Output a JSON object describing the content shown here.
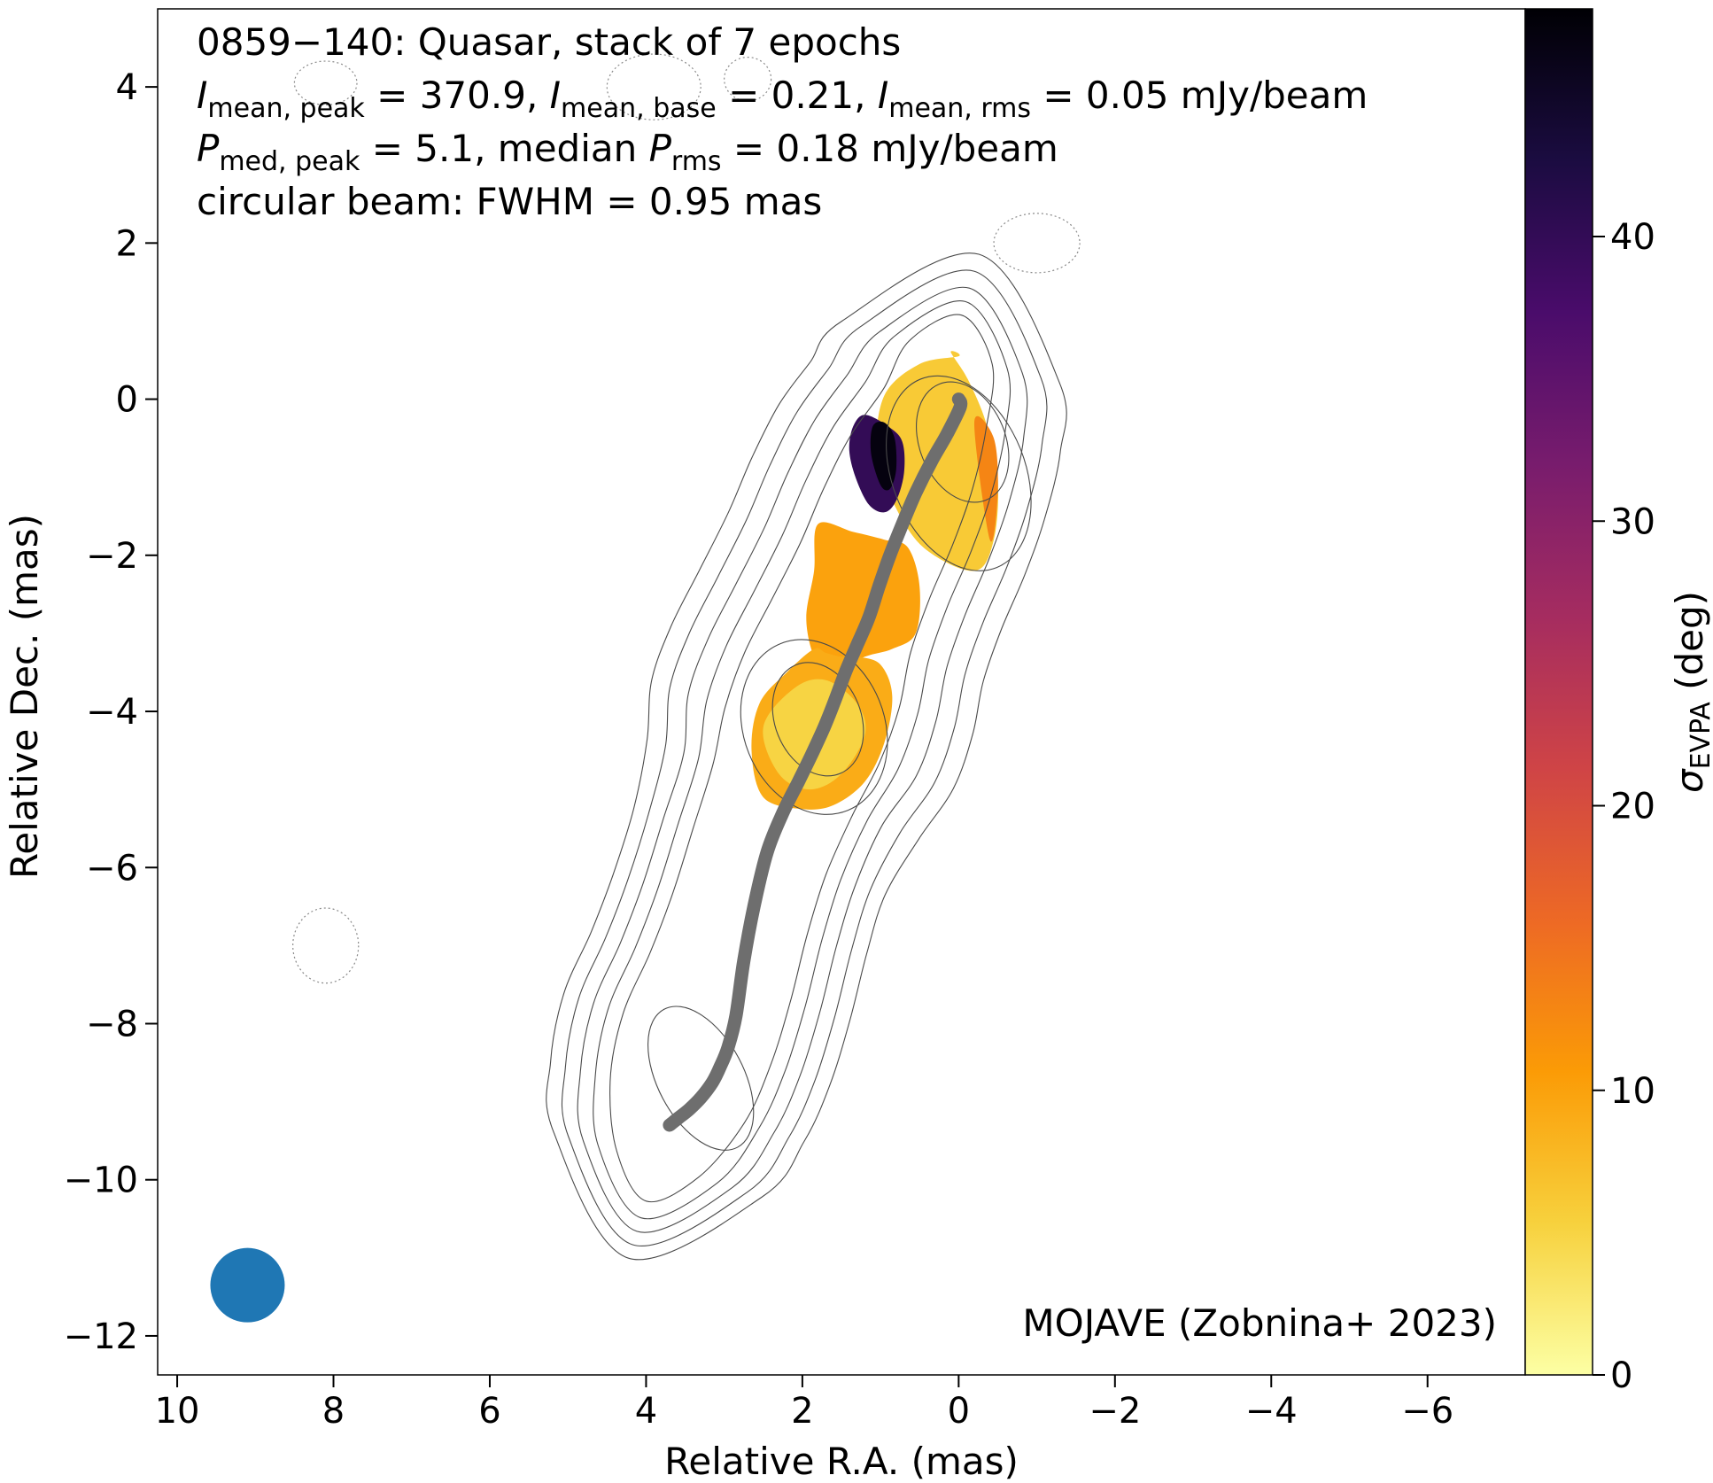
{
  "chart_data": {
    "type": "heatmap",
    "title_lines": [
      {
        "parts": [
          {
            "t": "0859−140: Quasar, stack of 7 epochs"
          }
        ]
      },
      {
        "parts": [
          {
            "t": "I",
            "i": true
          },
          {
            "t": "mean, peak",
            "sub": true
          },
          {
            "t": " = 370.9, "
          },
          {
            "t": "I",
            "i": true
          },
          {
            "t": "mean, base",
            "sub": true
          },
          {
            "t": " = 0.21, "
          },
          {
            "t": "I",
            "i": true
          },
          {
            "t": "mean, rms",
            "sub": true
          },
          {
            "t": " = 0.05 mJy/beam"
          }
        ]
      },
      {
        "parts": [
          {
            "t": "P",
            "i": true
          },
          {
            "t": "med, peak",
            "sub": true
          },
          {
            "t": " = 5.1, median "
          },
          {
            "t": "P",
            "i": true
          },
          {
            "t": "rms",
            "sub": true
          },
          {
            "t": " = 0.18 mJy/beam"
          }
        ]
      },
      {
        "parts": [
          {
            "t": "circular beam: FWHM = 0.95 mas"
          }
        ]
      }
    ],
    "xlabel": "Relative R.A. (mas)",
    "ylabel": "Relative Dec. (mas)",
    "xlim": [
      10.25,
      -7.25
    ],
    "ylim": [
      -12.5,
      5.0
    ],
    "xticks": [
      10,
      8,
      6,
      4,
      2,
      0,
      -2,
      -4,
      -6
    ],
    "xtick_labels": [
      "10",
      "8",
      "6",
      "4",
      "2",
      "0",
      "−2",
      "−4",
      "−6"
    ],
    "yticks": [
      4,
      2,
      0,
      -2,
      -4,
      -6,
      -8,
      -10,
      -12
    ],
    "ytick_labels": [
      "4",
      "2",
      "0",
      "−2",
      "−4",
      "−6",
      "−8",
      "−10",
      "−12"
    ],
    "colorbar": {
      "label_main": "σ",
      "label_sub": "EVPA",
      "label_rest": " (deg)",
      "range": [
        0,
        48
      ],
      "ticks": [
        0,
        10,
        20,
        30,
        40
      ],
      "tick_labels": [
        "0",
        "10",
        "20",
        "30",
        "40"
      ],
      "colormap": "inferno_r",
      "colors": [
        "#fcffa4",
        "#f7d13d",
        "#fb9b06",
        "#ed6925",
        "#cf4446",
        "#a52c60",
        "#781c6d",
        "#4a0c6b",
        "#1b0c41",
        "#000004"
      ]
    },
    "ridge_line": {
      "color": "#6e6e6e",
      "x": [
        0.0,
        -0.02,
        0.15,
        0.35,
        0.55,
        0.72,
        0.88,
        1.02,
        1.15,
        1.3,
        1.45,
        1.58,
        1.72,
        1.88,
        2.05,
        2.25,
        2.45,
        2.62,
        2.75,
        2.85,
        2.95,
        3.05,
        3.15,
        3.3,
        3.45,
        3.6,
        3.7
      ],
      "y": [
        0.0,
        -0.1,
        -0.45,
        -0.8,
        -1.2,
        -1.6,
        -2.0,
        -2.4,
        -2.8,
        -3.15,
        -3.5,
        -3.85,
        -4.2,
        -4.55,
        -4.9,
        -5.3,
        -5.8,
        -6.5,
        -7.2,
        -7.9,
        -8.3,
        -8.55,
        -8.75,
        -8.95,
        -9.1,
        -9.22,
        -9.3
      ]
    },
    "beam": {
      "x": 9.1,
      "y": -11.35,
      "fwhm": 0.95,
      "color": "#1f77b4"
    },
    "polarization_regions": [
      {
        "name": "core",
        "x": [
          0.0,
          0.5,
          0.95,
          1.05,
          0.85,
          0.45,
          -0.2,
          -0.45,
          -0.5,
          -0.35,
          -0.12,
          0.1
        ],
        "y": [
          0.55,
          0.45,
          0.05,
          -0.7,
          -1.3,
          -1.9,
          -2.2,
          -1.8,
          -1.0,
          -0.3,
          0.25,
          0.6
        ],
        "value": 6
      },
      {
        "name": "core-edge",
        "x": [
          -0.2,
          -0.45,
          -0.5,
          -0.4
        ],
        "y": [
          -0.3,
          -0.5,
          -1.2,
          -1.8
        ],
        "value": 13
      },
      {
        "name": "mid-jet",
        "x": [
          1.8,
          1.85,
          1.95,
          1.85,
          1.65,
          1.2,
          0.85,
          0.55,
          0.5,
          0.65,
          0.95,
          1.35
        ],
        "y": [
          -1.6,
          -2.2,
          -2.8,
          -3.3,
          -3.5,
          -3.3,
          -3.2,
          -3.0,
          -2.4,
          -1.9,
          -1.8,
          -1.7
        ],
        "value": 10
      },
      {
        "name": "lower-jet",
        "x": [
          1.85,
          2.2,
          2.55,
          2.65,
          2.5,
          2.0,
          1.6,
          1.2,
          0.95,
          0.85,
          1.0,
          1.3,
          1.5,
          1.7
        ],
        "y": [
          -3.2,
          -3.5,
          -3.9,
          -4.5,
          -5.1,
          -5.25,
          -5.2,
          -4.9,
          -4.4,
          -3.8,
          -3.4,
          -3.3,
          -3.3,
          -3.25
        ],
        "value": 9
      },
      {
        "name": "lower-jet-core",
        "x": [
          2.1,
          1.7,
          1.3,
          1.2,
          1.5,
          1.9,
          2.3,
          2.5
        ],
        "y": [
          -3.7,
          -3.6,
          -3.9,
          -4.3,
          -4.8,
          -5.0,
          -4.8,
          -4.2
        ],
        "value": 5
      }
    ],
    "evpa_hotspot": {
      "x": [
        1.35,
        1.2,
        0.9,
        0.72,
        0.7,
        0.8,
        0.95,
        1.15,
        1.32,
        1.4
      ],
      "y": [
        -0.35,
        -0.2,
        -0.35,
        -0.55,
        -0.95,
        -1.3,
        -1.45,
        -1.35,
        -1.0,
        -0.65
      ],
      "inner_x": [
        1.1,
        0.95,
        0.82,
        0.8,
        0.88,
        1.0,
        1.12
      ],
      "inner_y": [
        -0.35,
        -0.3,
        -0.5,
        -0.9,
        -1.15,
        -1.1,
        -0.7
      ],
      "outer_value": 40,
      "inner_value": 47
    },
    "contours": {
      "stroke": "#4a4a4a",
      "center_x": [
        0.1,
        0.3,
        0.6,
        0.9,
        1.2,
        1.5,
        1.75,
        2.0,
        2.25,
        2.55,
        2.8,
        3.05,
        3.35,
        3.6,
        3.85
      ],
      "center_y": [
        0.6,
        -0.1,
        -0.8,
        -1.5,
        -2.2,
        -2.9,
        -3.6,
        -4.3,
        -5.0,
        -5.8,
        -6.6,
        -7.4,
        -8.2,
        -9.0,
        -9.8
      ],
      "levels": [
        {
          "hw": [
            0.55,
            0.7,
            0.85,
            0.9,
            0.9,
            0.95,
            1.05,
            1.05,
            0.95,
            0.9,
            0.9,
            0.95,
            1.0,
            0.9,
            0.55
          ]
        },
        {
          "hw": [
            0.75,
            0.95,
            1.1,
            1.15,
            1.15,
            1.2,
            1.3,
            1.3,
            1.15,
            1.1,
            1.1,
            1.15,
            1.2,
            1.1,
            0.8
          ]
        },
        {
          "hw": [
            0.95,
            1.2,
            1.35,
            1.4,
            1.4,
            1.45,
            1.55,
            1.55,
            1.35,
            1.3,
            1.3,
            1.35,
            1.4,
            1.3,
            1.0
          ]
        },
        {
          "hw": [
            1.2,
            1.45,
            1.6,
            1.65,
            1.65,
            1.7,
            1.8,
            1.8,
            1.6,
            1.5,
            1.5,
            1.55,
            1.6,
            1.5,
            1.2
          ]
        },
        {
          "hw": [
            1.45,
            1.7,
            1.85,
            1.9,
            1.9,
            1.95,
            2.05,
            2.05,
            1.85,
            1.7,
            1.7,
            1.75,
            1.8,
            1.7,
            1.4
          ]
        }
      ],
      "inner": [
        {
          "cx": -0.05,
          "cy": -0.55,
          "rx": 0.55,
          "ry": 0.8,
          "rot": -22
        },
        {
          "cx": 0.0,
          "cy": -0.95,
          "rx": 0.85,
          "ry": 1.3,
          "rot": -22
        },
        {
          "cx": 1.8,
          "cy": -4.1,
          "rx": 0.55,
          "ry": 0.75,
          "rot": -22
        },
        {
          "cx": 1.85,
          "cy": -4.2,
          "rx": 0.9,
          "ry": 1.15,
          "rot": -22
        },
        {
          "cx": 3.3,
          "cy": -8.7,
          "rx": 0.55,
          "ry": 1.0,
          "rot": -28
        }
      ]
    },
    "noise_contours": [
      {
        "cx": 8.1,
        "cy": 4.05,
        "rx": 0.4,
        "ry": 0.28
      },
      {
        "cx": 3.9,
        "cy": 4.0,
        "rx": 0.6,
        "ry": 0.42
      },
      {
        "cx": 2.7,
        "cy": 4.1,
        "rx": 0.3,
        "ry": 0.28
      },
      {
        "cx": -1.0,
        "cy": 2.0,
        "rx": 0.55,
        "ry": 0.38
      },
      {
        "cx": 8.1,
        "cy": -7.0,
        "rx": 0.42,
        "ry": 0.48
      }
    ],
    "credit": "MOJAVE (Zobnina+ 2023)"
  }
}
